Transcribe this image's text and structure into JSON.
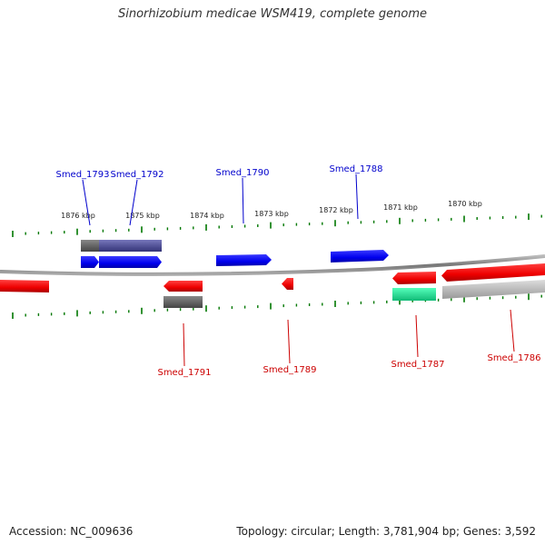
{
  "title": "Sinorhizobium medicae WSM419, complete genome",
  "footer": {
    "accession_label": "Accession: NC_009636",
    "summary": "Topology: circular; Length: 3,781,904 bp; Genes: 3,592"
  },
  "colors": {
    "forward_gene": "#0000ee",
    "reverse_gene": "#ee0000",
    "forward_label": "#0000cc",
    "reverse_label": "#cc0000",
    "ticks": "#007700",
    "backbone": "#777777",
    "cds_grey": "#666666",
    "cds_purple": "#555599",
    "cds_green": "#22dd99",
    "cds_light": "#bbbbbb"
  },
  "scale_labels": [
    "1876 kbp",
    "1875 kbp",
    "1874 kbp",
    "1873 kbp",
    "1872 kbp",
    "1871 kbp",
    "1870 kbp"
  ],
  "genes_forward": [
    {
      "name": "Smed_1793",
      "color": "blue"
    },
    {
      "name": "Smed_1792",
      "color": "blue"
    },
    {
      "name": "Smed_1790",
      "color": "blue"
    },
    {
      "name": "Smed_1788",
      "color": "blue"
    }
  ],
  "genes_reverse": [
    {
      "name": "Smed_1791",
      "color": "red"
    },
    {
      "name": "Smed_1789",
      "color": "red"
    },
    {
      "name": "Smed_1787",
      "color": "red"
    },
    {
      "name": "Smed_1786",
      "color": "red"
    }
  ]
}
